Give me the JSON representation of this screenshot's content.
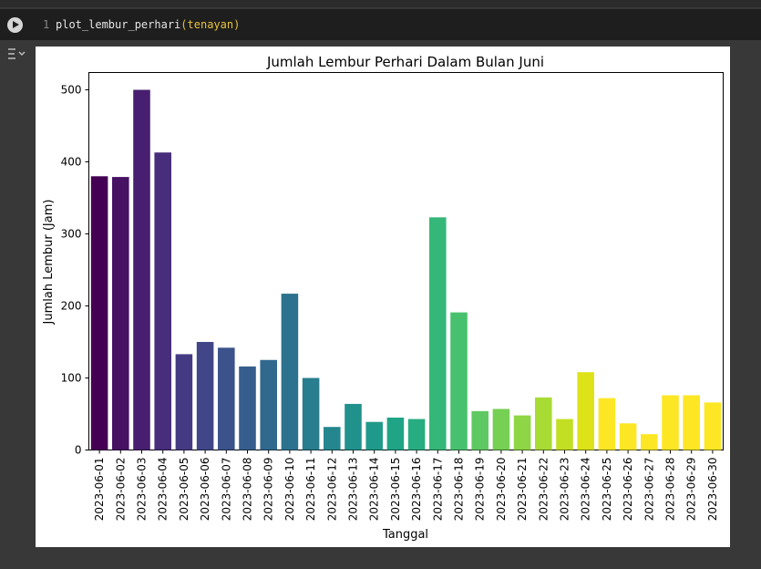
{
  "cell": {
    "line_number": "1",
    "function_name": "plot_lembur_perhari",
    "argument": "tenayan"
  },
  "icons": {
    "run": "play-circle-icon",
    "output_toggle": "output-collapse-icon"
  },
  "chart_data": {
    "type": "bar",
    "title": "Jumlah Lembur Perhari Dalam Bulan Juni",
    "xlabel": "Tanggal",
    "ylabel": "Jumlah Lembur (Jam)",
    "ylim": [
      0,
      525
    ],
    "yticks": [
      0,
      100,
      200,
      300,
      400,
      500
    ],
    "grid": false,
    "palette": "viridis",
    "categories": [
      "2023-06-01",
      "2023-06-02",
      "2023-06-03",
      "2023-06-04",
      "2023-06-05",
      "2023-06-06",
      "2023-06-07",
      "2023-06-08",
      "2023-06-09",
      "2023-06-10",
      "2023-06-11",
      "2023-06-12",
      "2023-06-13",
      "2023-06-14",
      "2023-06-15",
      "2023-06-16",
      "2023-06-17",
      "2023-06-18",
      "2023-06-19",
      "2023-06-20",
      "2023-06-21",
      "2023-06-22",
      "2023-06-23",
      "2023-06-24",
      "2023-06-25",
      "2023-06-26",
      "2023-06-27",
      "2023-06-28",
      "2023-06-29",
      "2023-06-30"
    ],
    "values": [
      380,
      379,
      500,
      413,
      133,
      150,
      142,
      116,
      125,
      217,
      100,
      32,
      64,
      39,
      45,
      43,
      323,
      191,
      54,
      57,
      48,
      73,
      43,
      108,
      72,
      37,
      22,
      76,
      76,
      66
    ],
    "colors": [
      "#440154",
      "#471164",
      "#481f70",
      "#472d7b",
      "#443a83",
      "#404688",
      "#3b528b",
      "#365d8d",
      "#31688e",
      "#2c728e",
      "#287d8e",
      "#24868e",
      "#21918c",
      "#1f9a8a",
      "#20a486",
      "#27ad81",
      "#35b779",
      "#47c16e",
      "#5ec962",
      "#75d054",
      "#8ed645",
      "#a8db34",
      "#c2df23",
      "#dde318",
      "#fde725",
      "#fde725",
      "#fde725",
      "#fde725",
      "#fde725",
      "#fde725"
    ]
  }
}
